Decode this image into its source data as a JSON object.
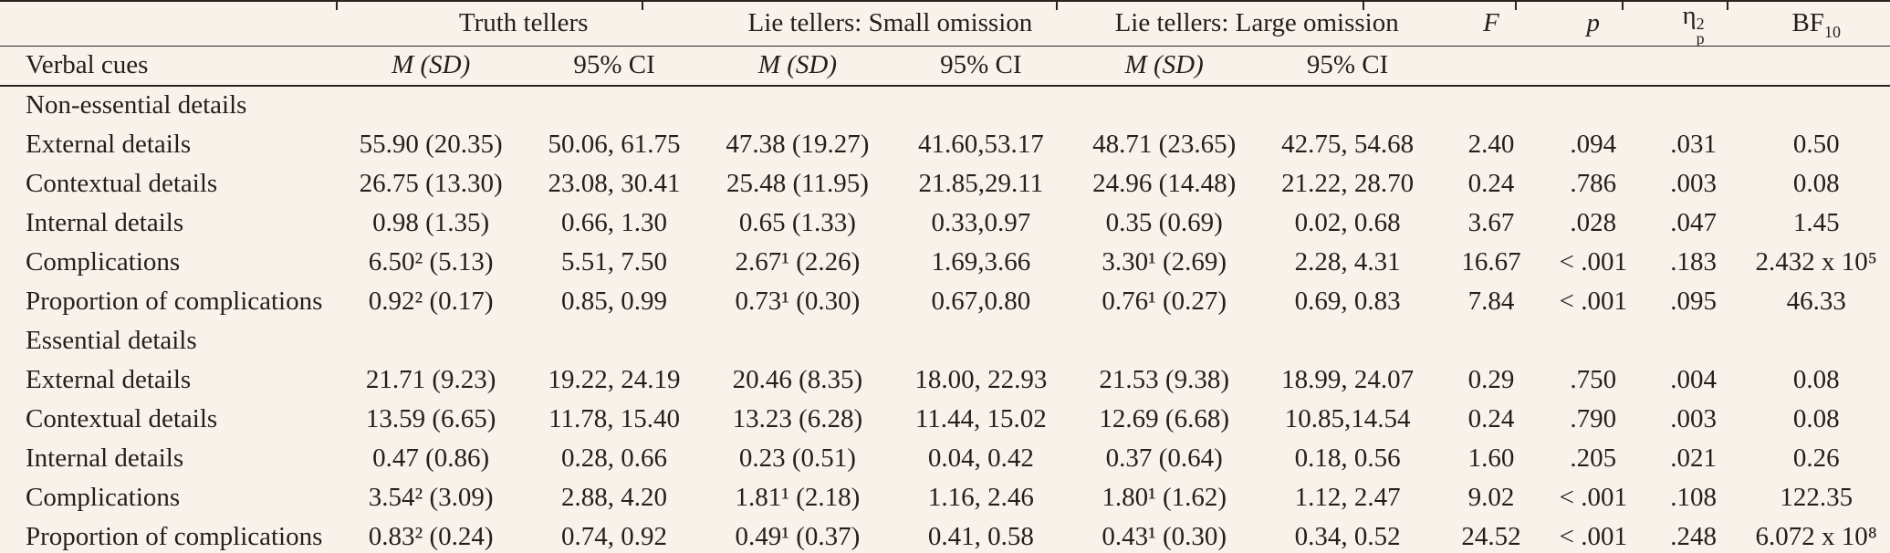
{
  "colors": {
    "background": "#f8f2ea",
    "text": "#241f1b",
    "rule": "#2a241f"
  },
  "header": {
    "stub_label": "Verbal cues",
    "spanners": [
      {
        "label": "Truth tellers"
      },
      {
        "label": "Lie tellers: Small omission"
      },
      {
        "label": "Lie tellers: Large omission"
      }
    ],
    "sub_columns": {
      "msd": "M (SD)",
      "ci": "95% CI"
    },
    "stat_columns": {
      "f": "F",
      "p": "p",
      "eta_base": "η",
      "eta_sup": "2",
      "eta_sub": "p",
      "bf_base": "BF",
      "bf_sub": "10"
    }
  },
  "table": {
    "column_keys": [
      "truth-msd",
      "truth-ci",
      "small-msd",
      "small-ci",
      "large-msd",
      "large-ci",
      "f",
      "p",
      "eta-p-sq",
      "bf10"
    ],
    "sections": [
      {
        "title": "Non-essential details",
        "rows": [
          {
            "label": "External details",
            "values": [
              "55.90 (20.35)",
              "50.06, 61.75",
              "47.38 (19.27)",
              "41.60,53.17",
              "48.71 (23.65)",
              "42.75, 54.68",
              "2.40",
              ".094",
              ".031",
              "0.50"
            ]
          },
          {
            "label": "Contextual details",
            "values": [
              "26.75 (13.30)",
              "23.08, 30.41",
              "25.48 (11.95)",
              "21.85,29.11",
              "24.96 (14.48)",
              "21.22, 28.70",
              "0.24",
              ".786",
              ".003",
              "0.08"
            ]
          },
          {
            "label": "Internal details",
            "values": [
              "0.98 (1.35)",
              "0.66, 1.30",
              "0.65 (1.33)",
              "0.33,0.97",
              "0.35 (0.69)",
              "0.02, 0.68",
              "3.67",
              ".028",
              ".047",
              "1.45"
            ]
          },
          {
            "label": "Complications",
            "values": [
              "6.50² (5.13)",
              "5.51, 7.50",
              "2.67¹ (2.26)",
              "1.69,3.66",
              "3.30¹ (2.69)",
              "2.28, 4.31",
              "16.67",
              "< .001",
              ".183",
              "2.432 x 10⁵"
            ]
          },
          {
            "label": "Proportion of complications",
            "values": [
              "0.92² (0.17)",
              "0.85, 0.99",
              "0.73¹ (0.30)",
              "0.67,0.80",
              "0.76¹ (0.27)",
              "0.69, 0.83",
              "7.84",
              "< .001",
              ".095",
              "46.33"
            ]
          }
        ]
      },
      {
        "title": "Essential details",
        "rows": [
          {
            "label": "External details",
            "values": [
              "21.71 (9.23)",
              "19.22, 24.19",
              "20.46 (8.35)",
              "18.00, 22.93",
              "21.53 (9.38)",
              "18.99, 24.07",
              "0.29",
              ".750",
              ".004",
              "0.08"
            ]
          },
          {
            "label": "Contextual details",
            "values": [
              "13.59 (6.65)",
              "11.78, 15.40",
              "13.23 (6.28)",
              "11.44, 15.02",
              "12.69 (6.68)",
              "10.85,14.54",
              "0.24",
              ".790",
              ".003",
              "0.08"
            ]
          },
          {
            "label": "Internal details",
            "values": [
              "0.47 (0.86)",
              "0.28, 0.66",
              "0.23 (0.51)",
              "0.04, 0.42",
              "0.37 (0.64)",
              "0.18, 0.56",
              "1.60",
              ".205",
              ".021",
              "0.26"
            ]
          },
          {
            "label": "Complications",
            "values": [
              "3.54² (3.09)",
              "2.88, 4.20",
              "1.81¹ (2.18)",
              "1.16, 2.46",
              "1.80¹ (1.62)",
              "1.12, 2.47",
              "9.02",
              "< .001",
              ".108",
              "122.35"
            ]
          },
          {
            "label": "Proportion of complications",
            "values": [
              "0.83² (0.24)",
              "0.74, 0.92",
              "0.49¹ (0.37)",
              "0.41, 0.58",
              "0.43¹ (0.30)",
              "0.34, 0.52",
              "24.52",
              "< .001",
              ".248",
              "6.072 x 10⁸"
            ]
          }
        ]
      }
    ]
  }
}
